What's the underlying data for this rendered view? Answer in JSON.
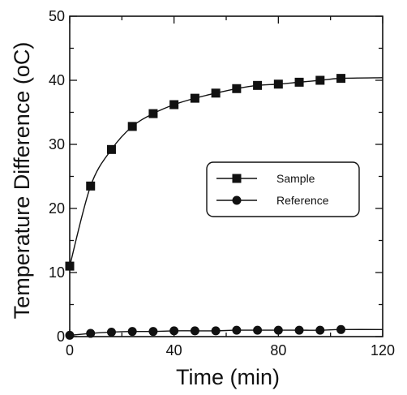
{
  "chart_data": {
    "type": "line",
    "xlabel": "Time (min)",
    "ylabel": "Temperature Difference (oC)",
    "xlim": [
      0,
      120
    ],
    "ylim": [
      0,
      50
    ],
    "xticks": [
      0,
      40,
      80,
      120
    ],
    "yticks": [
      0,
      10,
      20,
      30,
      40,
      50
    ],
    "xtick_labels": [
      "0",
      "40",
      "80",
      "120"
    ],
    "ytick_labels": [
      "0",
      "10",
      "20",
      "30",
      "40",
      "50"
    ],
    "grid": false,
    "legend_position": "center-right",
    "series": [
      {
        "name": "Sample",
        "marker": "square",
        "color": "#111111",
        "x": [
          0,
          8,
          16,
          24,
          32,
          40,
          48,
          56,
          64,
          72,
          80,
          88,
          96,
          104
        ],
        "y": [
          11.0,
          23.5,
          29.2,
          32.8,
          34.8,
          36.2,
          37.2,
          38.0,
          38.7,
          39.2,
          39.4,
          39.7,
          40.0,
          40.3
        ],
        "curve_end": [
          120,
          40.4
        ]
      },
      {
        "name": "Reference",
        "marker": "circle",
        "color": "#111111",
        "x": [
          0,
          8,
          16,
          24,
          32,
          40,
          48,
          56,
          64,
          72,
          80,
          88,
          96,
          104
        ],
        "y": [
          0.2,
          0.5,
          0.7,
          0.8,
          0.8,
          0.9,
          0.9,
          0.9,
          1.0,
          1.0,
          1.0,
          1.0,
          1.0,
          1.1
        ],
        "curve_end": [
          120,
          1.1
        ]
      }
    ]
  }
}
